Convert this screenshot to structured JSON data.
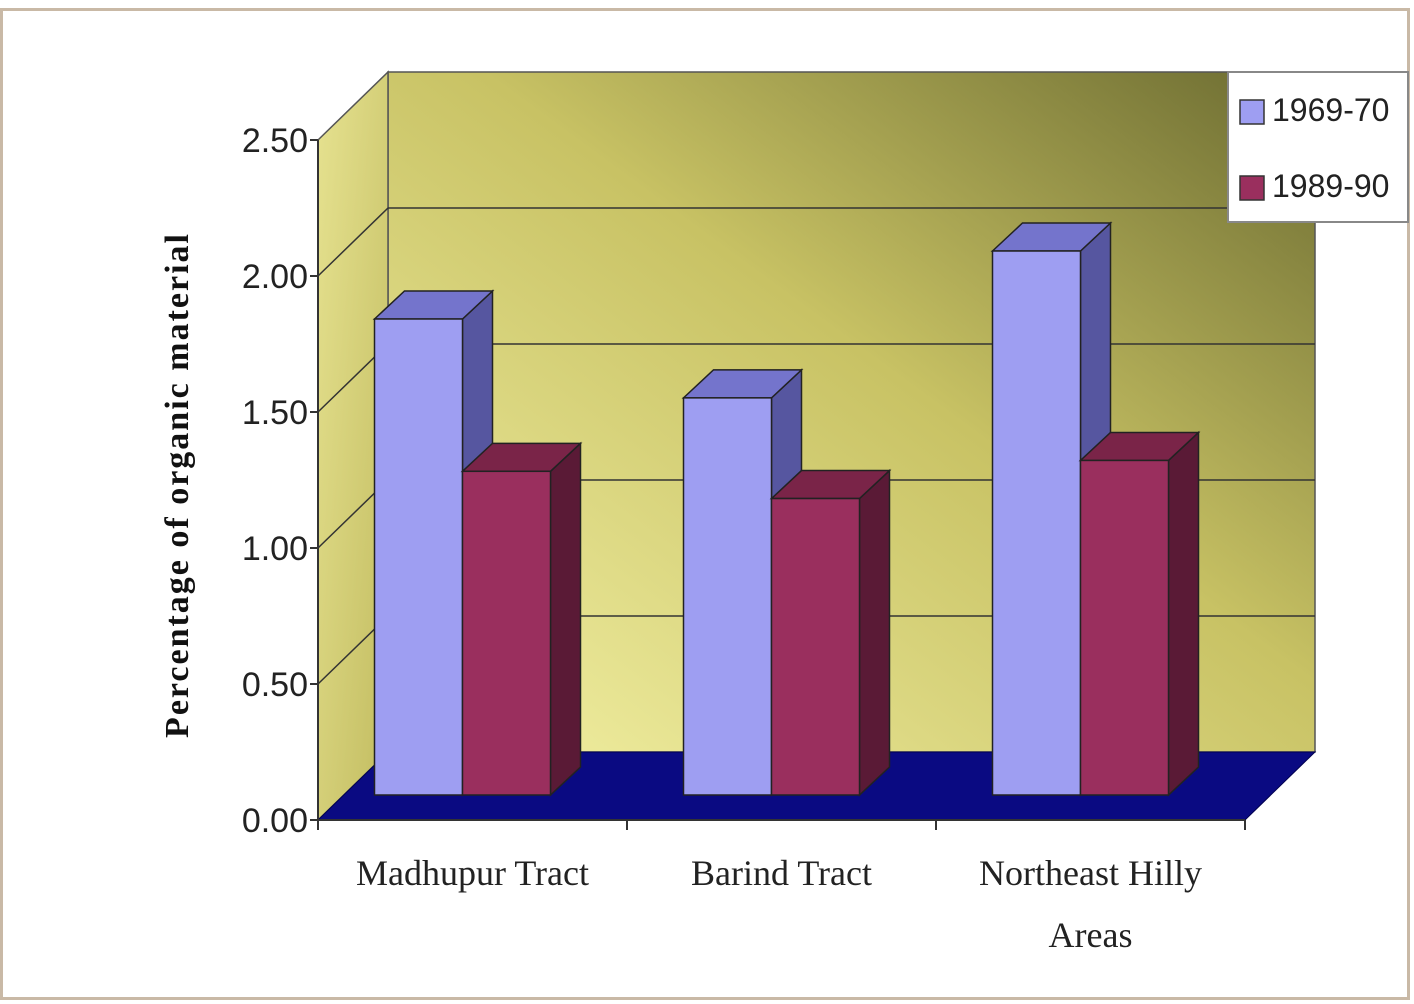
{
  "chart_data": {
    "type": "bar",
    "categories": [
      "Madhupur Tract",
      "Barind Tract",
      "Northeast Hilly Areas"
    ],
    "category_lines": [
      [
        "Madhupur Tract"
      ],
      [
        "Barind Tract"
      ],
      [
        "Northeast Hilly",
        "Areas"
      ]
    ],
    "series": [
      {
        "name": "1969-70",
        "values": [
          1.75,
          1.46,
          2.0
        ]
      },
      {
        "name": "1989-90",
        "values": [
          1.19,
          1.09,
          1.23
        ]
      }
    ],
    "y_ticks": [
      "0.00",
      "0.50",
      "1.00",
      "1.50",
      "2.00",
      "2.50"
    ],
    "ylabel": "Percentage of organic material",
    "xlabel": "",
    "ylim": [
      0,
      2.5
    ],
    "grid": true,
    "legend_position": "top-right",
    "style": "3d",
    "colors": {
      "series_front": [
        "#9e9ef2",
        "#9a2f5e"
      ],
      "series_top": [
        "#7474cc",
        "#7a2448"
      ],
      "series_side": [
        "#5656a0",
        "#5a1a36"
      ],
      "floor": "#0a0a82",
      "wall": "#d8d47a"
    }
  }
}
